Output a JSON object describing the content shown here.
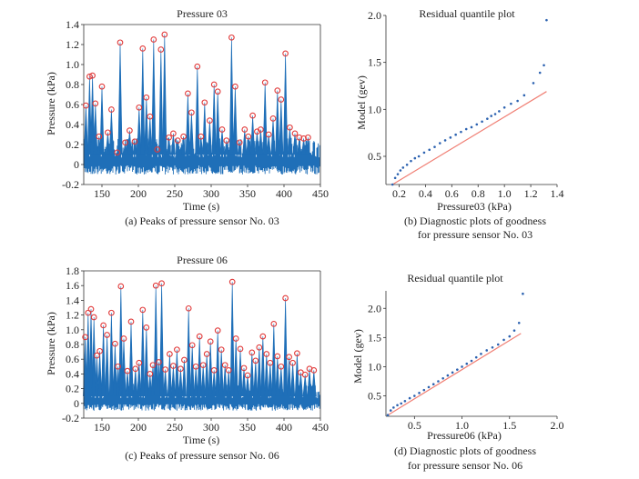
{
  "colors": {
    "signal": "#1f6fb8",
    "peak": "#e03a3a",
    "fit_line": "#f07f74",
    "qq_point": "#2c62b0",
    "axis": "#333333"
  },
  "chart_data": [
    {
      "id": "a",
      "type": "line",
      "title": "Pressure 03",
      "xlabel": "Time (s)",
      "ylabel": "Pressure (kPa)",
      "caption": "(a) Peaks of pressure sensor No. 03",
      "xlim": [
        125,
        450
      ],
      "ylim": [
        -0.2,
        1.4
      ],
      "xticks": [
        150,
        200,
        250,
        300,
        350,
        400,
        450
      ],
      "yticks": [
        -0.2,
        0,
        0.2,
        0.4,
        0.6,
        0.8,
        1.0,
        1.2,
        1.4
      ],
      "ytick_labels": [
        "-0.2",
        "0",
        "0.2",
        "0.4",
        "0.6",
        "0.8",
        "1.0",
        "1.2",
        "1.4"
      ],
      "series": [
        {
          "kind": "peaks",
          "x": [
            128,
            133,
            137,
            141,
            146,
            150,
            158,
            163,
            171,
            175,
            182,
            188,
            195,
            201,
            206,
            211,
            216,
            221,
            226,
            231,
            236,
            242,
            248,
            254,
            262,
            268,
            273,
            281,
            286,
            291,
            298,
            304,
            309,
            315,
            321,
            328,
            333,
            339,
            346,
            351,
            357,
            363,
            368,
            374,
            379,
            385,
            391,
            396,
            402,
            408,
            415,
            421,
            427,
            433
          ],
          "y": [
            0.59,
            0.88,
            0.89,
            0.61,
            0.28,
            0.78,
            0.32,
            0.55,
            0.12,
            1.22,
            0.22,
            0.34,
            0.23,
            0.57,
            1.16,
            0.67,
            0.48,
            1.25,
            0.15,
            1.15,
            1.3,
            0.27,
            0.31,
            0.24,
            0.28,
            0.71,
            0.52,
            0.98,
            0.28,
            0.62,
            0.44,
            0.8,
            0.73,
            0.35,
            0.24,
            1.27,
            0.78,
            0.22,
            0.35,
            0.28,
            0.49,
            0.33,
            0.35,
            0.82,
            0.3,
            0.46,
            0.74,
            0.65,
            1.11,
            0.37,
            0.31,
            0.27,
            0.26,
            0.27
          ]
        }
      ]
    },
    {
      "id": "b",
      "type": "scatter",
      "title": "Residual quantile plot",
      "xlabel": "Pressure03 (kPa)",
      "ylabel": "Model (gev)",
      "caption": [
        "(b) Diagnostic plots of goodness",
        "for pressure sensor No. 03"
      ],
      "xlim": [
        0.1,
        1.4
      ],
      "ylim": [
        0.2,
        2.0
      ],
      "xticks": [
        0.2,
        0.4,
        0.6,
        0.8,
        1.0,
        1.2,
        1.4
      ],
      "xtick_labels": [
        "0.2",
        "0.4",
        "0.6",
        "0.8",
        "1.0",
        "1.2",
        "1.4"
      ],
      "yticks": [
        0.5,
        1.0,
        1.5,
        2.0
      ],
      "ytick_labels": [
        "0.5",
        "1.0",
        "1.5",
        "2.0"
      ],
      "fit_line": {
        "x": [
          0.15,
          1.32
        ],
        "y": [
          0.2,
          1.19
        ]
      },
      "points": {
        "x": [
          0.15,
          0.17,
          0.19,
          0.21,
          0.23,
          0.26,
          0.29,
          0.32,
          0.35,
          0.39,
          0.43,
          0.47,
          0.51,
          0.55,
          0.59,
          0.63,
          0.67,
          0.71,
          0.75,
          0.79,
          0.83,
          0.87,
          0.9,
          0.93,
          0.96,
          1.0,
          1.05,
          1.1,
          1.15,
          1.22,
          1.27,
          1.3,
          1.32
        ],
        "y": [
          0.2,
          0.27,
          0.31,
          0.35,
          0.38,
          0.41,
          0.45,
          0.48,
          0.5,
          0.54,
          0.57,
          0.6,
          0.64,
          0.67,
          0.7,
          0.73,
          0.76,
          0.79,
          0.81,
          0.84,
          0.87,
          0.9,
          0.93,
          0.95,
          0.98,
          1.02,
          1.06,
          1.09,
          1.15,
          1.28,
          1.39,
          1.47,
          1.95
        ]
      }
    },
    {
      "id": "c",
      "type": "line",
      "title": "Pressure 06",
      "xlabel": "Time (s)",
      "ylabel": "Pressure (kPa)",
      "caption": "(c) Peaks of pressure sensor No. 06",
      "xlim": [
        125,
        450
      ],
      "ylim": [
        -0.2,
        1.8
      ],
      "xticks": [
        150,
        200,
        250,
        300,
        350,
        400,
        450
      ],
      "yticks": [
        -0.2,
        0,
        0.2,
        0.4,
        0.6,
        0.8,
        1.0,
        1.2,
        1.4,
        1.6,
        1.8
      ],
      "ytick_labels": [
        "-0.2",
        "0",
        "0.2",
        "0.4",
        "0.6",
        "0.8",
        "1.0",
        "1.2",
        "1.4",
        "1.6",
        "1.8"
      ],
      "series": [
        {
          "kind": "peaks",
          "x": [
            127,
            131,
            135,
            139,
            143,
            147,
            152,
            157,
            163,
            168,
            172,
            176,
            180,
            185,
            190,
            196,
            201,
            206,
            211,
            216,
            220,
            224,
            228,
            232,
            237,
            243,
            248,
            253,
            258,
            263,
            269,
            274,
            279,
            284,
            289,
            294,
            299,
            304,
            309,
            314,
            319,
            324,
            329,
            334,
            340,
            345,
            350,
            356,
            361,
            366,
            371,
            376,
            381,
            386,
            391,
            396,
            402,
            407,
            412,
            418,
            423,
            429,
            435,
            441
          ],
          "y": [
            0.9,
            1.23,
            1.28,
            1.17,
            0.65,
            0.71,
            1.06,
            0.93,
            1.23,
            0.81,
            0.5,
            1.59,
            0.88,
            0.44,
            1.11,
            0.47,
            0.55,
            1.27,
            1.03,
            0.4,
            0.52,
            1.6,
            0.56,
            1.63,
            0.46,
            0.67,
            0.51,
            0.73,
            0.47,
            0.59,
            1.29,
            0.79,
            0.5,
            0.91,
            0.52,
            0.67,
            0.84,
            0.45,
            0.99,
            0.73,
            0.52,
            0.45,
            1.65,
            0.88,
            0.74,
            0.48,
            0.38,
            0.69,
            0.58,
            0.76,
            0.91,
            0.67,
            0.55,
            1.08,
            0.64,
            0.5,
            1.43,
            0.63,
            0.55,
            0.68,
            0.42,
            0.39,
            0.47,
            0.45
          ]
        }
      ]
    },
    {
      "id": "d",
      "type": "scatter",
      "title": "Residual quantile plot",
      "xlabel": "Pressure06 (kPa)",
      "ylabel": "Model (gev)",
      "caption": [
        "(d) Diagnostic plots of goodness",
        "for pressure sensor No. 06"
      ],
      "xlim": [
        0.2,
        2.0
      ],
      "ylim": [
        0.15,
        2.3
      ],
      "xticks": [
        0.5,
        1.0,
        1.5,
        2.0
      ],
      "xtick_labels": [
        "0.5",
        "1.0",
        "1.5",
        "2.0"
      ],
      "yticks": [
        0.5,
        1.0,
        1.5,
        2.0
      ],
      "ytick_labels": [
        "0.5",
        "1.0",
        "1.5",
        "2.0"
      ],
      "fit_line": {
        "x": [
          0.22,
          1.62
        ],
        "y": [
          0.17,
          1.57
        ]
      },
      "points": {
        "x": [
          0.22,
          0.25,
          0.28,
          0.32,
          0.36,
          0.4,
          0.45,
          0.5,
          0.55,
          0.6,
          0.65,
          0.7,
          0.75,
          0.8,
          0.85,
          0.9,
          0.95,
          1.0,
          1.05,
          1.1,
          1.15,
          1.2,
          1.26,
          1.32,
          1.38,
          1.44,
          1.5,
          1.55,
          1.6,
          1.64
        ],
        "y": [
          0.17,
          0.25,
          0.3,
          0.34,
          0.37,
          0.41,
          0.46,
          0.5,
          0.55,
          0.6,
          0.65,
          0.7,
          0.75,
          0.8,
          0.85,
          0.9,
          0.95,
          1.0,
          1.05,
          1.1,
          1.16,
          1.22,
          1.28,
          1.33,
          1.38,
          1.46,
          1.52,
          1.62,
          1.75,
          2.25
        ]
      }
    }
  ]
}
